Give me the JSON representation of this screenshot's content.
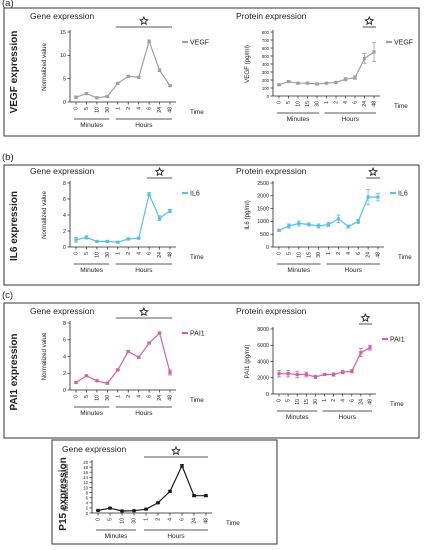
{
  "colors": {
    "vegf": "#a0a0a0",
    "il6": "#5bc0e8",
    "pai1": "#d063a3",
    "p15": "#1a1a1a",
    "axis": "#222222",
    "frame": "#333333"
  },
  "icons": {
    "significance": "star-outline-icon"
  },
  "chart_data": [
    {
      "id": "vegf-gene",
      "panel_label": "(a)",
      "row_label": "VEGF expression",
      "type": "line",
      "title": "Gene expression",
      "ylabel": "Normalized value",
      "legend": "VEGF",
      "legend_position": "top-right",
      "ylim": [
        0,
        15
      ],
      "yticks": [
        0,
        5,
        10,
        15
      ],
      "x": [
        "0",
        "5",
        "10",
        "30",
        "1",
        "2",
        "4",
        "6",
        "24",
        "48"
      ],
      "values": [
        1.0,
        1.8,
        0.9,
        1.2,
        4.0,
        5.5,
        5.3,
        13.0,
        6.8,
        3.5
      ],
      "errors": [
        0.3,
        0.2,
        0.2,
        0.2,
        0.2,
        0.2,
        0.2,
        0.3,
        0.3,
        0.2
      ],
      "group_labels": [
        "Minutes",
        "Hours"
      ],
      "time_label": "Time",
      "significance_from": 4,
      "significance_to": 9
    },
    {
      "id": "vegf-protein",
      "type": "line",
      "title": "Protein expression",
      "ylabel": "VEGF (pg/ml)",
      "legend": "VEGF",
      "legend_position": "top-right",
      "ylim": [
        0,
        800
      ],
      "yticks": [
        0,
        100,
        200,
        300,
        400,
        500,
        600,
        700,
        800
      ],
      "x": [
        "0",
        "5",
        "10",
        "15",
        "30",
        "1",
        "2",
        "4",
        "6",
        "24",
        "48"
      ],
      "values": [
        140,
        180,
        160,
        160,
        150,
        160,
        170,
        210,
        230,
        470,
        550
      ],
      "errors": [
        10,
        10,
        10,
        10,
        10,
        10,
        10,
        20,
        20,
        60,
        120
      ],
      "group_labels": [
        "Minutes",
        "Hours"
      ],
      "time_label": "Time",
      "significance_from": 9,
      "significance_to": 10
    },
    {
      "id": "il6-gene",
      "panel_label": "(b)",
      "row_label": "IL6 expression",
      "type": "line",
      "title": "Gene expression",
      "ylabel": "Normalized value",
      "legend": "IL6",
      "legend_position": "top-right",
      "ylim": [
        0,
        8
      ],
      "yticks": [
        0,
        2,
        4,
        6,
        8
      ],
      "x": [
        "0",
        "5",
        "10",
        "30",
        "1",
        "2",
        "4",
        "6",
        "24",
        "48"
      ],
      "values": [
        0.9,
        1.2,
        0.7,
        0.7,
        0.6,
        1.0,
        1.1,
        6.6,
        3.6,
        4.5
      ],
      "errors": [
        0.3,
        0.2,
        0.1,
        0.1,
        0.1,
        0.1,
        0.1,
        0.2,
        0.3,
        0.2
      ],
      "group_labels": [
        "Minutes",
        "Hours"
      ],
      "time_label": "Time",
      "significance_from": 7,
      "significance_to": 9
    },
    {
      "id": "il6-protein",
      "type": "line",
      "title": "Protein expression",
      "ylabel": "IL6 (pg/ml)",
      "legend": "IL6",
      "legend_position": "top-right",
      "ylim": [
        0,
        2500
      ],
      "yticks": [
        0,
        500,
        1000,
        1500,
        2000,
        2500
      ],
      "x": [
        "0",
        "5",
        "10",
        "15",
        "30",
        "1",
        "2",
        "4",
        "6",
        "24",
        "48"
      ],
      "values": [
        650,
        820,
        920,
        880,
        820,
        880,
        1100,
        800,
        1000,
        1950,
        1950
      ],
      "errors": [
        40,
        80,
        100,
        60,
        80,
        80,
        150,
        60,
        80,
        300,
        150
      ],
      "group_labels": [
        "Minutes",
        "Hours"
      ],
      "time_label": "Time",
      "significance_from": 9,
      "significance_to": 10
    },
    {
      "id": "pai1-gene",
      "panel_label": "(c)",
      "row_label": "PAI1 expression",
      "type": "line",
      "title": "Gene expression",
      "ylabel": "Normalized value",
      "legend": "PAI1",
      "legend_position": "top-right",
      "ylim": [
        0,
        8
      ],
      "yticks": [
        0,
        2,
        4,
        6,
        8
      ],
      "x": [
        "0",
        "5",
        "10",
        "30",
        "1",
        "2",
        "4",
        "6",
        "24",
        "48"
      ],
      "values": [
        0.9,
        1.7,
        1.1,
        0.8,
        2.4,
        4.6,
        3.9,
        5.6,
        6.8,
        2.1
      ],
      "errors": [
        0.1,
        0.1,
        0.1,
        0.1,
        0.1,
        0.1,
        0.1,
        0.1,
        0.1,
        0.3
      ],
      "group_labels": [
        "Minutes",
        "Hours"
      ],
      "time_label": "Time",
      "significance_from": 4,
      "significance_to": 9
    },
    {
      "id": "pai1-protein",
      "type": "line",
      "title": "Protein expression",
      "ylabel": "PAI1 (pg/ml)",
      "legend": "PAI1",
      "legend_position": "top-right",
      "ylim": [
        0,
        8000
      ],
      "yticks": [
        0,
        2000,
        4000,
        6000,
        8000
      ],
      "x": [
        "0",
        "5",
        "10",
        "15",
        "30",
        "1",
        "2",
        "4",
        "6",
        "24",
        "48"
      ],
      "values": [
        2500,
        2500,
        2400,
        2400,
        2100,
        2400,
        2400,
        2700,
        2800,
        5100,
        5700
      ],
      "errors": [
        400,
        400,
        400,
        300,
        200,
        100,
        200,
        200,
        200,
        500,
        300
      ],
      "group_labels": [
        "Minutes",
        "Hours"
      ],
      "time_label": "Time",
      "significance_from": 9,
      "significance_to": 10
    },
    {
      "id": "p15-gene",
      "row_label": "P15 expression",
      "type": "line",
      "title": "Gene expression",
      "ylabel": "Normalized value",
      "legend": "",
      "ylim": [
        0,
        20
      ],
      "yticks": [
        0,
        2,
        4,
        6,
        8,
        10,
        12,
        14,
        16,
        18,
        20
      ],
      "x": [
        "0",
        "5",
        "10",
        "30",
        "1",
        "2",
        "4",
        "6",
        "24",
        "48"
      ],
      "values": [
        1.0,
        1.9,
        0.8,
        0.9,
        1.5,
        4.0,
        8.5,
        18.5,
        6.8,
        6.8
      ],
      "errors": [
        0.1,
        0.2,
        0.1,
        0.1,
        0.1,
        0.2,
        0.3,
        0.5,
        0.3,
        0.3
      ],
      "group_labels": [
        "Minutes",
        "Hours"
      ],
      "time_label": "Time",
      "significance_from": 4,
      "significance_to": 9
    }
  ]
}
